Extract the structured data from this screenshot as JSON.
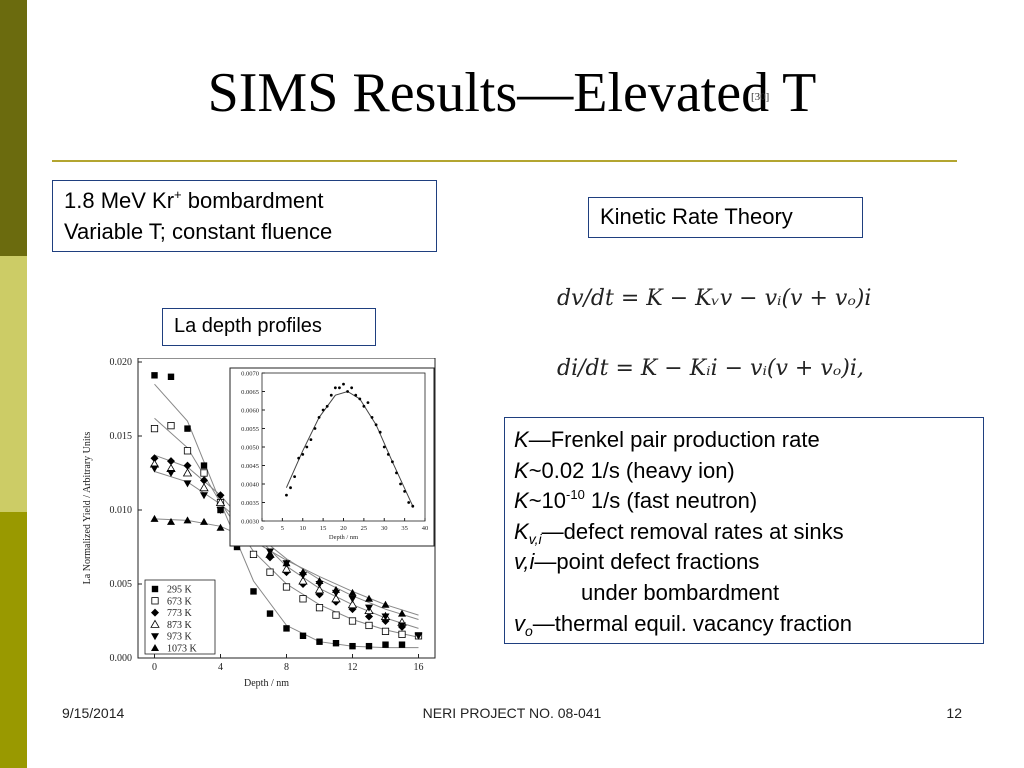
{
  "slide": {
    "title": "SIMS Results—Elevated T",
    "citation": "[30]",
    "box_kr": {
      "line1_pre": "1.8 MeV Kr",
      "line1_sup": "+",
      "line1_post": " bombardment",
      "line2": "Variable T; constant fluence"
    },
    "box_krt": "Kinetic Rate Theory",
    "box_la": "La depth profiles",
    "equations": {
      "eq1": "dv/dt = K − Kᵥv − vᵢ(v + vₒ)i",
      "eq2": "di/dt = K − Kᵢi − vᵢ(v + vₒ)i,"
    },
    "definitions": {
      "r1_sym": "K",
      "r1_text": "—Frenkel pair production rate",
      "r2_sym": "K",
      "r2_text": "~0.02 1/s (heavy ion)",
      "r3_sym": "K",
      "r3_mid": "~10",
      "r3_sup": "-10",
      "r3_text": " 1/s (fast neutron)",
      "r4_sym": "K",
      "r4_sub": "v,i",
      "r4_text": "—defect removal rates at sinks",
      "r5_sym": "v,i",
      "r5_text": "—point defect fractions",
      "r6_text": "under bombardment",
      "r7_sym": "v",
      "r7_sub": "o",
      "r7_text": "—thermal equil. vacancy fraction"
    },
    "footer": {
      "date": "9/15/2014",
      "center": "NERI PROJECT NO. 08-041",
      "page": "12"
    }
  },
  "chart_data": [
    {
      "type": "scatter",
      "title": "",
      "xlabel": "Depth / nm",
      "ylabel": "La Normalized Yield / Arbitrary Units",
      "xlim": [
        -1,
        17
      ],
      "ylim": [
        0,
        0.02
      ],
      "x_ticks": [
        "0",
        "4",
        "8",
        "12",
        "16"
      ],
      "y_ticks": [
        "0.000",
        "0.005",
        "0.010",
        "0.015",
        "0.020"
      ],
      "legend_position": "bottom-left",
      "series": [
        {
          "name": "295 K",
          "marker": "square-filled",
          "points": [
            [
              0,
              0.0191
            ],
            [
              1,
              0.019
            ],
            [
              2,
              0.0155
            ],
            [
              3,
              0.013
            ],
            [
              4,
              0.01
            ],
            [
              5,
              0.0075
            ],
            [
              6,
              0.0045
            ],
            [
              7,
              0.003
            ],
            [
              8,
              0.002
            ],
            [
              9,
              0.0015
            ],
            [
              10,
              0.0011
            ],
            [
              11,
              0.001
            ],
            [
              12,
              0.0008
            ],
            [
              13,
              0.0008
            ],
            [
              14,
              0.0009
            ],
            [
              15,
              0.0009
            ]
          ]
        },
        {
          "name": "673 K",
          "marker": "square-open",
          "points": [
            [
              0,
              0.0155
            ],
            [
              1,
              0.0157
            ],
            [
              2,
              0.014
            ],
            [
              3,
              0.0125
            ],
            [
              4,
              0.0105
            ],
            [
              5,
              0.0088
            ],
            [
              6,
              0.007
            ],
            [
              7,
              0.0058
            ],
            [
              8,
              0.0048
            ],
            [
              9,
              0.004
            ],
            [
              10,
              0.0034
            ],
            [
              11,
              0.0029
            ],
            [
              12,
              0.0025
            ],
            [
              13,
              0.0022
            ],
            [
              14,
              0.0018
            ],
            [
              15,
              0.0016
            ],
            [
              16,
              0.0015
            ]
          ]
        },
        {
          "name": "773 K",
          "marker": "diamond-filled",
          "points": [
            [
              0,
              0.0135
            ],
            [
              1,
              0.0133
            ],
            [
              2,
              0.013
            ],
            [
              3,
              0.012
            ],
            [
              4,
              0.011
            ],
            [
              5,
              0.0095
            ],
            [
              6,
              0.008
            ],
            [
              7,
              0.0068
            ],
            [
              8,
              0.0058
            ],
            [
              9,
              0.005
            ],
            [
              10,
              0.0043
            ],
            [
              11,
              0.0038
            ],
            [
              12,
              0.0033
            ],
            [
              13,
              0.0028
            ],
            [
              14,
              0.0025
            ],
            [
              15,
              0.0021
            ]
          ]
        },
        {
          "name": "873 K",
          "marker": "triangle-up-open",
          "points": [
            [
              0,
              0.0131
            ],
            [
              1,
              0.0128
            ],
            [
              2,
              0.0125
            ],
            [
              3,
              0.0115
            ],
            [
              4,
              0.0105
            ],
            [
              5,
              0.0092
            ],
            [
              6,
              0.008
            ],
            [
              7,
              0.007
            ],
            [
              8,
              0.006
            ],
            [
              9,
              0.0052
            ],
            [
              10,
              0.0046
            ],
            [
              11,
              0.004
            ],
            [
              12,
              0.0036
            ],
            [
              13,
              0.0032
            ],
            [
              14,
              0.0028
            ],
            [
              15,
              0.0024
            ]
          ]
        },
        {
          "name": "973 K",
          "marker": "triangle-down-filled",
          "points": [
            [
              0,
              0.0128
            ],
            [
              1,
              0.0125
            ],
            [
              2,
              0.0118
            ],
            [
              3,
              0.011
            ],
            [
              4,
              0.01
            ],
            [
              5,
              0.009
            ],
            [
              6,
              0.008
            ],
            [
              7,
              0.0072
            ],
            [
              8,
              0.0064
            ],
            [
              9,
              0.0056
            ],
            [
              10,
              0.005
            ],
            [
              11,
              0.0044
            ],
            [
              12,
              0.004
            ],
            [
              13,
              0.0034
            ],
            [
              14,
              0.0028
            ],
            [
              15,
              0.0022
            ],
            [
              16,
              0.0015
            ]
          ]
        },
        {
          "name": "1073 K",
          "marker": "triangle-up-filled",
          "points": [
            [
              0,
              0.0094
            ],
            [
              1,
              0.0092
            ],
            [
              2,
              0.0093
            ],
            [
              3,
              0.0092
            ],
            [
              4,
              0.0088
            ],
            [
              5,
              0.0082
            ],
            [
              6,
              0.0078
            ],
            [
              7,
              0.007
            ],
            [
              8,
              0.0064
            ],
            [
              9,
              0.0058
            ],
            [
              10,
              0.0052
            ],
            [
              11,
              0.0046
            ],
            [
              12,
              0.0044
            ],
            [
              13,
              0.004
            ],
            [
              14,
              0.0036
            ],
            [
              15,
              0.003
            ]
          ]
        }
      ],
      "fit_curves": [
        {
          "points": [
            [
              0,
              0.0185
            ],
            [
              2,
              0.016
            ],
            [
              4,
              0.0105
            ],
            [
              6,
              0.0052
            ],
            [
              8,
              0.0022
            ],
            [
              10,
              0.0011
            ],
            [
              12,
              0.0008
            ],
            [
              14,
              0.0007
            ],
            [
              16,
              0.0007
            ]
          ]
        },
        {
          "points": [
            [
              0,
              0.0162
            ],
            [
              2,
              0.0142
            ],
            [
              4,
              0.0105
            ],
            [
              6,
              0.0072
            ],
            [
              8,
              0.005
            ],
            [
              10,
              0.0036
            ],
            [
              12,
              0.0026
            ],
            [
              14,
              0.0019
            ],
            [
              16,
              0.0014
            ]
          ]
        },
        {
          "points": [
            [
              0,
              0.0137
            ],
            [
              2,
              0.0129
            ],
            [
              4,
              0.011
            ],
            [
              6,
              0.0084
            ],
            [
              8,
              0.0062
            ],
            [
              10,
              0.0047
            ],
            [
              12,
              0.0036
            ],
            [
              14,
              0.0027
            ],
            [
              16,
              0.002
            ]
          ]
        },
        {
          "points": [
            [
              0,
              0.0126
            ],
            [
              2,
              0.0119
            ],
            [
              4,
              0.0104
            ],
            [
              6,
              0.0085
            ],
            [
              8,
              0.0067
            ],
            [
              10,
              0.0053
            ],
            [
              12,
              0.0042
            ],
            [
              14,
              0.0033
            ],
            [
              16,
              0.0026
            ]
          ]
        },
        {
          "points": [
            [
              0,
              0.0094
            ],
            [
              2,
              0.0093
            ],
            [
              4,
              0.0089
            ],
            [
              6,
              0.0079
            ],
            [
              8,
              0.0066
            ],
            [
              10,
              0.0055
            ],
            [
              12,
              0.0045
            ],
            [
              14,
              0.0036
            ],
            [
              16,
              0.0029
            ]
          ]
        }
      ]
    },
    {
      "type": "scatter",
      "title": "",
      "xlabel": "Depth / nm",
      "ylabel": "",
      "xlim": [
        0,
        40
      ],
      "ylim": [
        0.003,
        0.007
      ],
      "x_ticks": [
        "0",
        "5",
        "10",
        "15",
        "20",
        "25",
        "30",
        "35",
        "40"
      ],
      "y_ticks": [
        "0.0030",
        "0.0035",
        "0.0040",
        "0.0045",
        "0.0050",
        "0.0055",
        "0.0060",
        "0.0065",
        "0.0070"
      ],
      "series": [
        {
          "name": "",
          "marker": "dot",
          "points": [
            [
              6,
              0.0037
            ],
            [
              7,
              0.0039
            ],
            [
              8,
              0.0042
            ],
            [
              9,
              0.0047
            ],
            [
              10,
              0.0048
            ],
            [
              11,
              0.005
            ],
            [
              12,
              0.0052
            ],
            [
              13,
              0.0055
            ],
            [
              14,
              0.0058
            ],
            [
              15,
              0.006
            ],
            [
              16,
              0.0061
            ],
            [
              17,
              0.0064
            ],
            [
              18,
              0.0066
            ],
            [
              19,
              0.0066
            ],
            [
              20,
              0.0067
            ],
            [
              21,
              0.0065
            ],
            [
              22,
              0.0066
            ],
            [
              23,
              0.0064
            ],
            [
              24,
              0.0063
            ],
            [
              25,
              0.0061
            ],
            [
              26,
              0.0062
            ],
            [
              27,
              0.0058
            ],
            [
              28,
              0.0056
            ],
            [
              29,
              0.0054
            ],
            [
              30,
              0.005
            ],
            [
              31,
              0.0048
            ],
            [
              32,
              0.0046
            ],
            [
              33,
              0.0043
            ],
            [
              34,
              0.004
            ],
            [
              35,
              0.0038
            ],
            [
              36,
              0.0035
            ],
            [
              37,
              0.0034
            ]
          ]
        }
      ],
      "fit_curve": {
        "points": [
          [
            6,
            0.0039
          ],
          [
            10,
            0.0049
          ],
          [
            14,
            0.0058
          ],
          [
            18,
            0.0064
          ],
          [
            21,
            0.0065
          ],
          [
            24,
            0.0063
          ],
          [
            28,
            0.0056
          ],
          [
            32,
            0.0046
          ],
          [
            37,
            0.0034
          ]
        ]
      }
    }
  ]
}
